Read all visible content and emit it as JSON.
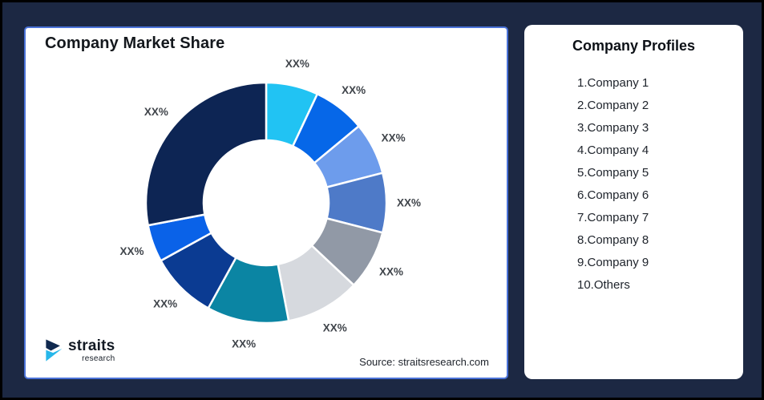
{
  "theme": {
    "page_background": "#1c2843",
    "page_border": "#000000",
    "card_background": "#ffffff",
    "left_card_border": "#4a72d8",
    "label_color": "#40454b"
  },
  "left_card": {
    "title": "Company Market Share",
    "source": "Source: straitsresearch.com",
    "logo": {
      "name": "straits",
      "sub": "research"
    }
  },
  "right_card": {
    "title": "Company Profiles",
    "items": [
      "1.Company 1",
      "2.Company 2",
      "3.Company 3",
      "4.Company 4",
      "5.Company 5",
      "6.Company 6",
      "7.Company 7",
      "8.Company 8",
      "9.Company 9",
      "10.Others"
    ]
  },
  "chart_data": {
    "type": "pie",
    "variant": "donut",
    "title": "Company Market Share",
    "start_angle_deg": 0,
    "direction": "clockwise",
    "inner_radius_ratio": 0.52,
    "legend_position": "none",
    "note": "All slice data labels read XX% (placeholder); slice sizes estimated from arc angles",
    "segments": [
      {
        "label": "XX%",
        "value_pct": 7,
        "color": "#21C3F3"
      },
      {
        "label": "XX%",
        "value_pct": 7,
        "color": "#0667E8"
      },
      {
        "label": "XX%",
        "value_pct": 7,
        "color": "#6D9CEC"
      },
      {
        "label": "XX%",
        "value_pct": 8,
        "color": "#4E7AC8"
      },
      {
        "label": "XX%",
        "value_pct": 8,
        "color": "#9199A6"
      },
      {
        "label": "XX%",
        "value_pct": 10,
        "color": "#D6D9DE"
      },
      {
        "label": "XX%",
        "value_pct": 11,
        "color": "#0B85A3"
      },
      {
        "label": "XX%",
        "value_pct": 9,
        "color": "#0B3B92"
      },
      {
        "label": "XX%",
        "value_pct": 5,
        "color": "#0A62E8"
      },
      {
        "label": "XX%",
        "value_pct": 28,
        "color": "#0D2554"
      }
    ]
  }
}
